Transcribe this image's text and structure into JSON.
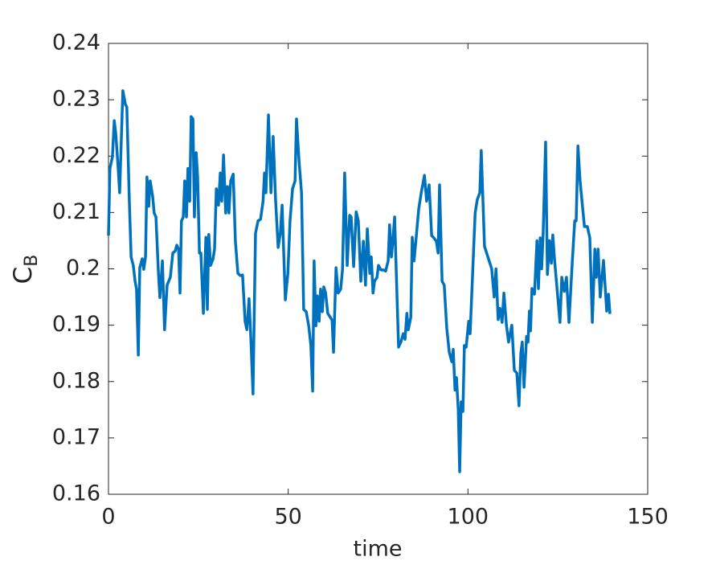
{
  "chart_data": {
    "type": "line",
    "xlabel": "time",
    "ylabel": "C",
    "ylabel_subscript": "B",
    "xlim": [
      0,
      150
    ],
    "xticks": [
      0,
      50,
      100,
      150
    ],
    "ylim": [
      0.16,
      0.24
    ],
    "yticks": [
      0.16,
      0.17,
      0.18,
      0.19,
      0.2,
      0.21,
      0.22,
      0.23,
      0.24
    ],
    "grid": false,
    "series": [
      {
        "name": "C_B",
        "color": "#0072BD",
        "x": [
          0,
          0.4,
          1.1,
          1.6,
          2,
          2.7,
          3.1,
          4,
          4.7,
          5.1,
          5.8,
          6.3,
          6.9,
          7.4,
          7.8,
          8.3,
          8.7,
          9.4,
          9.8,
          10.3,
          10.7,
          11.2,
          11.6,
          12.3,
          12.7,
          13.2,
          13.9,
          14.3,
          15,
          15.6,
          16.3,
          17.2,
          17.9,
          18.6,
          19,
          19.5,
          19.9,
          20.3,
          20.8,
          21.2,
          21.7,
          22.1,
          22.6,
          23,
          23.5,
          23.9,
          24.4,
          24.8,
          25.3,
          25.7,
          26.4,
          27.1,
          27.5,
          27.9,
          28.4,
          29.1,
          29.5,
          30,
          30.6,
          31.1,
          31.5,
          32,
          32.6,
          33.1,
          33.5,
          34,
          34.7,
          35.3,
          36,
          36.7,
          37.3,
          38,
          38.5,
          39.1,
          39.6,
          40.2,
          40.9,
          41.6,
          42.3,
          43,
          43.4,
          43.8,
          44.5,
          45.2,
          45.8,
          46.5,
          47.2,
          47.8,
          48.3,
          49.2,
          49.9,
          50.5,
          51.2,
          51.9,
          52.3,
          53,
          53.7,
          54.3,
          55,
          55.7,
          56.3,
          56.8,
          57.2,
          57.7,
          58.1,
          58.6,
          59,
          59.5,
          59.9,
          60.4,
          61,
          61.7,
          62.2,
          62.6,
          63.3,
          63.9,
          64.6,
          65.1,
          65.7,
          66.4,
          67.1,
          67.5,
          68.2,
          68.9,
          69.5,
          70.2,
          70.9,
          71.5,
          72,
          72.7,
          73.1,
          73.6,
          74,
          74.7,
          75.1,
          75.8,
          76.5,
          77.1,
          77.8,
          78.2,
          78.7,
          79.1,
          79.6,
          80,
          80.7,
          81.4,
          82,
          82.5,
          83,
          83.4,
          84.1,
          84.5,
          85,
          85.6,
          86.3,
          87,
          87.9,
          88.5,
          89.2,
          89.9,
          90.5,
          91.2,
          91.7,
          92.1,
          92.8,
          93.4,
          94.1,
          94.8,
          95.5,
          95.9,
          96.4,
          96.8,
          97.3,
          97.7,
          98.1,
          98.6,
          99,
          99.5,
          100.2,
          100.6,
          101.3,
          102,
          102.6,
          103.3,
          103.7,
          104.6,
          106.6,
          107.3,
          107.8,
          108.4,
          108.9,
          109.5,
          110,
          110.7,
          111.3,
          112.2,
          112.9,
          113.6,
          114.2,
          114.7,
          115.1,
          115.6,
          116.3,
          116.7,
          117.1,
          117.4,
          117.8,
          118.5,
          119.2,
          119.6,
          120.1,
          120.5,
          120.9,
          121.6,
          122.1,
          122.7,
          123.2,
          123.6,
          124.1,
          125.6,
          126.1,
          126.8,
          127.4,
          128.1,
          129,
          129.7,
          130.1,
          130.6,
          131.2,
          132.4,
          133.2,
          133.9,
          134.6,
          135.3,
          135.7,
          136.2,
          136.8,
          137.7,
          138.6,
          139.1,
          139.5
        ],
        "values": [
          0.2059,
          0.2178,
          0.2199,
          0.2263,
          0.2242,
          0.2178,
          0.2135,
          0.2316,
          0.2292,
          0.2287,
          0.212,
          0.2021,
          0.2006,
          0.1978,
          0.1964,
          0.1847,
          0.2002,
          0.2018,
          0.1999,
          0.2021,
          0.2163,
          0.2111,
          0.2156,
          0.2128,
          0.2099,
          0.2092,
          0.1992,
          0.1949,
          0.2014,
          0.1892,
          0.1971,
          0.1985,
          0.2028,
          0.2032,
          0.2042,
          0.2035,
          0.1957,
          0.2085,
          0.2092,
          0.2156,
          0.2092,
          0.2178,
          0.212,
          0.227,
          0.2266,
          0.2092,
          0.2206,
          0.2163,
          0.2028,
          0.2028,
          0.1921,
          0.2056,
          0.1928,
          0.2061,
          0.2006,
          0.2018,
          0.2035,
          0.2142,
          0.2113,
          0.217,
          0.212,
          0.2202,
          0.2099,
          0.2146,
          0.2099,
          0.2156,
          0.2168,
          0.2049,
          0.1992,
          0.1988,
          0.1989,
          0.1907,
          0.1892,
          0.1947,
          0.1878,
          0.1778,
          0.2063,
          0.2085,
          0.2088,
          0.212,
          0.217,
          0.2135,
          0.2273,
          0.2135,
          0.2235,
          0.212,
          0.2038,
          0.2063,
          0.2113,
          0.1945,
          0.1992,
          0.2085,
          0.2142,
          0.2156,
          0.2266,
          0.2192,
          0.2135,
          0.1928,
          0.1924,
          0.1899,
          0.1864,
          0.1783,
          0.2014,
          0.1899,
          0.1952,
          0.1907,
          0.1964,
          0.1924,
          0.1968,
          0.1957,
          0.1921,
          0.1914,
          0.1909,
          0.1852,
          0.2002,
          0.1957,
          0.1964,
          0.1999,
          0.217,
          0.2006,
          0.2095,
          0.2092,
          0.2004,
          0.2101,
          0.2085,
          0.1978,
          0.2049,
          0.1971,
          0.2071,
          0.1992,
          0.2021,
          0.1957,
          0.1978,
          0.1985,
          0.2006,
          0.1998,
          0.1998,
          0.1996,
          0.2014,
          0.2078,
          0.2021,
          0.2049,
          0.2092,
          0.2006,
          0.1861,
          0.1871,
          0.1885,
          0.1875,
          0.1921,
          0.1892,
          0.1914,
          0.2056,
          0.2014,
          0.2056,
          0.2106,
          0.2135,
          0.2166,
          0.212,
          0.2149,
          0.2059,
          0.2055,
          0.2049,
          0.2028,
          0.2149,
          0.1978,
          0.1971,
          0.1895,
          0.1852,
          0.1835,
          0.1857,
          0.1785,
          0.1807,
          0.175,
          0.164,
          0.1764,
          0.1747,
          0.1864,
          0.1861,
          0.1907,
          0.1885,
          0.1992,
          0.2099,
          0.2123,
          0.2135,
          0.221,
          0.204,
          0.2,
          0.195,
          0.2,
          0.191,
          0.193,
          0.1905,
          0.1957,
          0.19,
          0.187,
          0.19,
          0.182,
          0.1815,
          0.1757,
          0.185,
          0.187,
          0.179,
          0.188,
          0.187,
          0.1925,
          0.189,
          0.1965,
          0.1955,
          0.205,
          0.1965,
          0.2055,
          0.2,
          0.206,
          0.2225,
          0.199,
          0.205,
          0.201,
          0.206,
          0.2015,
          0.1905,
          0.1985,
          0.196,
          0.1985,
          0.1905,
          0.201,
          0.2085,
          0.2085,
          0.2218,
          0.2155,
          0.2075,
          0.2075,
          0.2055,
          0.1905,
          0.2035,
          0.1985,
          0.2035,
          0.195,
          0.2015,
          0.1925,
          0.1955,
          0.192
        ]
      }
    ]
  }
}
